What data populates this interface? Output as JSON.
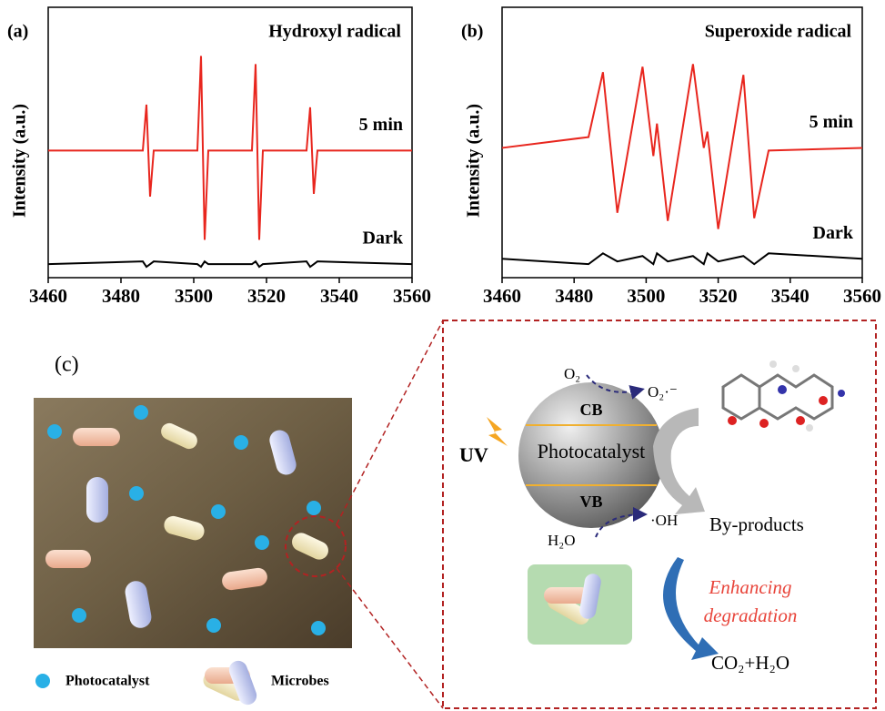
{
  "chart_data": [
    {
      "type": "line",
      "panel_label": "(a)",
      "title": "Hydroxyl radical",
      "ylabel": "Intensity (a.u.)",
      "x": [
        3460,
        3486,
        3487,
        3488,
        3489,
        3501,
        3502,
        3503,
        3504,
        3516,
        3517,
        3518,
        3519,
        3531,
        3532,
        3533,
        3534,
        3560
      ],
      "series": [
        {
          "name": "5 min",
          "color": "#e8261e",
          "values": [
            47,
            47,
            64,
            30,
            47,
            47,
            82,
            14,
            47,
            47,
            79,
            14,
            47,
            47,
            63,
            31,
            47,
            47
          ]
        },
        {
          "name": "Dark",
          "color": "#000000",
          "values": [
            5,
            6,
            4,
            5,
            6,
            5,
            4,
            6,
            5,
            5,
            6,
            4,
            5,
            6,
            4,
            5,
            6,
            5
          ]
        }
      ],
      "xlim": [
        3460,
        3560
      ],
      "xticks": [
        3460,
        3480,
        3500,
        3520,
        3540,
        3560
      ],
      "ylim": [
        0,
        100
      ]
    },
    {
      "type": "line",
      "panel_label": "(b)",
      "title": "Superoxide radical",
      "ylabel": "Intensity (a.u.)",
      "x": [
        3460,
        3484,
        3488,
        3492,
        3499,
        3502,
        3503,
        3506,
        3513,
        3516,
        3517,
        3520,
        3527,
        3530,
        3534,
        3560
      ],
      "series": [
        {
          "name": "5 min",
          "color": "#e8261e",
          "values": [
            48,
            52,
            76,
            24,
            78,
            45,
            57,
            21,
            79,
            48,
            54,
            18,
            75,
            22,
            47,
            48
          ]
        },
        {
          "name": "Dark",
          "color": "#000000",
          "values": [
            7,
            5,
            9,
            6,
            8,
            5,
            9,
            6,
            8,
            5,
            9,
            6,
            8,
            5,
            9,
            7
          ]
        }
      ],
      "xlim": [
        3460,
        3560
      ],
      "xticks": [
        3460,
        3480,
        3500,
        3520,
        3540,
        3560
      ],
      "ylim": [
        0,
        100
      ]
    }
  ],
  "diagram": {
    "panel_label": "(c)",
    "legend": [
      "Photocatalyst",
      "Microbes"
    ],
    "o2": "O₂",
    "superoxide": "O₂·⁻",
    "cb": "CB",
    "catalyst": "Photocatalyst",
    "vb": "VB",
    "uv": "UV",
    "h2o": "H₂O",
    "oh": "·OH",
    "byproducts": "By-products",
    "enhancing": [
      "Enhancing",
      "degradation"
    ],
    "products": "CO₂+H₂O"
  }
}
